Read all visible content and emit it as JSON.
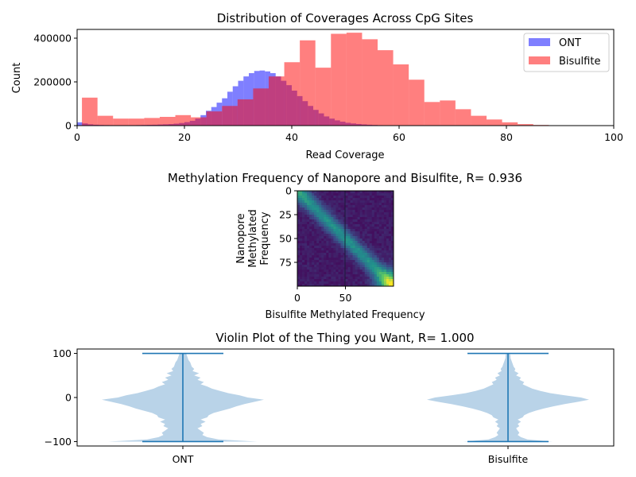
{
  "colors": {
    "ont": "#0000ff",
    "bisulfite": "#ff0000",
    "violin_fill": "#b9d3e8",
    "violin_line": "#1f77b4"
  },
  "chart_data": [
    {
      "type": "bar",
      "subtype": "histogram",
      "title": "Distribution of Coverages Across CpG Sites",
      "xlabel": "Read Coverage",
      "ylabel": "Count",
      "xlim": [
        0,
        100
      ],
      "ylim": [
        0,
        440000
      ],
      "x_ticks": [
        "0",
        "20",
        "40",
        "60",
        "80",
        "100"
      ],
      "y_ticks": [
        "0",
        "200000",
        "400000"
      ],
      "legend": {
        "placement": "top-right",
        "entries": [
          "ONT",
          "Bisulfite"
        ]
      },
      "series": [
        {
          "name": "ONT",
          "color": "#0000ff",
          "alpha": 0.5,
          "bin_start": 0,
          "bin_width": 1,
          "values": [
            15000,
            10000,
            6000,
            4000,
            3000,
            2500,
            2000,
            2000,
            2000,
            2000,
            2000,
            2500,
            3000,
            3500,
            4000,
            5000,
            6000,
            7000,
            9000,
            12000,
            16000,
            22000,
            32000,
            48000,
            68000,
            85000,
            105000,
            125000,
            155000,
            180000,
            205000,
            225000,
            240000,
            250000,
            252000,
            248000,
            240000,
            225000,
            205000,
            185000,
            160000,
            135000,
            112000,
            90000,
            72000,
            56000,
            42000,
            32000,
            24000,
            18000,
            13000,
            10000,
            7500,
            5500,
            4000,
            3000,
            2000,
            1500,
            1200,
            1000,
            800,
            600,
            500,
            400,
            300,
            250,
            200,
            150,
            100,
            80,
            60,
            50,
            40,
            30,
            20,
            15,
            10,
            8,
            6,
            4,
            3,
            2,
            2,
            1,
            1,
            1,
            1,
            1,
            1,
            1,
            0,
            0,
            0,
            0,
            0,
            0,
            0,
            0,
            0,
            0
          ]
        },
        {
          "name": "Bisulfite",
          "color": "#ff0000",
          "alpha": 0.5,
          "bin_edges": [
            0,
            0.9,
            3.8,
            6.7,
            9.6,
            12.5,
            15.4,
            18.3,
            21.2,
            24.1,
            27.0,
            29.9,
            32.8,
            35.7,
            38.6,
            41.5,
            44.4,
            47.3,
            50.2,
            53.1,
            56.0,
            58.9,
            61.8,
            64.7,
            67.6,
            70.5,
            73.4,
            76.3,
            79.2,
            82.1,
            85.0,
            87.9
          ],
          "values": [
            0,
            128000,
            45000,
            32000,
            32000,
            35000,
            40000,
            48000,
            38000,
            65000,
            90000,
            120000,
            170000,
            225000,
            290000,
            390000,
            265000,
            420000,
            425000,
            395000,
            345000,
            280000,
            210000,
            108000,
            115000,
            75000,
            45000,
            28000,
            15000,
            7000,
            3000
          ]
        }
      ]
    },
    {
      "type": "heatmap",
      "title": "Methylation Frequency of Nanopore and Bisulfite, R= 0.936",
      "xlabel": "Bisulfite Methylated Frequency",
      "ylabel": "Nanopore\nMethylated\nFrequency",
      "x_ticks": [
        "0",
        "50"
      ],
      "y_ticks": [
        "0",
        "25",
        "50",
        "75"
      ],
      "xlim": [
        0,
        100
      ],
      "ylim": [
        100,
        0
      ],
      "colormap": "viridis",
      "pattern": "high density along the diagonal and corners; maximum at (100, 100)"
    },
    {
      "type": "violin",
      "title": "Violin Plot of the Thing you Want, R= 1.000",
      "categories": [
        "ONT",
        "Bisulfite"
      ],
      "y_ticks": [
        "100",
        "0",
        "−100"
      ],
      "ylim": [
        -110,
        110
      ],
      "series": [
        {
          "name": "ONT",
          "min": -100,
          "max": 100,
          "density_y": [
            -100,
            -95,
            -90,
            -85,
            -80,
            -75,
            -70,
            -65,
            -60,
            -55,
            -50,
            -45,
            -40,
            -35,
            -30,
            -25,
            -20,
            -15,
            -10,
            -5,
            0,
            5,
            10,
            15,
            20,
            25,
            30,
            35,
            40,
            45,
            50,
            55,
            60,
            65,
            70,
            75,
            80,
            85,
            90,
            95,
            100
          ],
          "density_w": [
            0.92,
            0.44,
            0.3,
            0.24,
            0.26,
            0.22,
            0.18,
            0.24,
            0.22,
            0.28,
            0.22,
            0.3,
            0.32,
            0.38,
            0.48,
            0.58,
            0.66,
            0.76,
            0.88,
            1.0,
            0.8,
            0.7,
            0.56,
            0.46,
            0.36,
            0.3,
            0.22,
            0.26,
            0.18,
            0.22,
            0.14,
            0.2,
            0.12,
            0.14,
            0.11,
            0.1,
            0.09,
            0.07,
            0.06,
            0.05,
            0.04
          ]
        },
        {
          "name": "Bisulfite",
          "min": -100,
          "max": 100,
          "density_y": [
            -100,
            -95,
            -90,
            -85,
            -80,
            -75,
            -70,
            -65,
            -60,
            -55,
            -50,
            -45,
            -40,
            -35,
            -30,
            -25,
            -20,
            -15,
            -10,
            -5,
            0,
            5,
            10,
            15,
            20,
            25,
            30,
            35,
            40,
            45,
            50,
            55,
            60,
            65,
            70,
            75,
            80,
            85,
            90,
            95,
            100
          ],
          "density_w": [
            0.55,
            0.24,
            0.16,
            0.12,
            0.14,
            0.12,
            0.1,
            0.14,
            0.12,
            0.16,
            0.12,
            0.18,
            0.2,
            0.26,
            0.34,
            0.44,
            0.56,
            0.7,
            0.86,
            1.0,
            0.9,
            0.7,
            0.52,
            0.4,
            0.3,
            0.24,
            0.18,
            0.2,
            0.14,
            0.16,
            0.1,
            0.13,
            0.08,
            0.09,
            0.07,
            0.06,
            0.05,
            0.04,
            0.03,
            0.03,
            0.02
          ]
        }
      ]
    }
  ]
}
